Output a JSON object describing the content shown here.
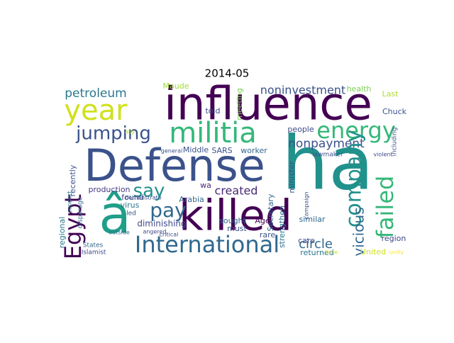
{
  "title": "2014-05",
  "words": [
    "influence",
    "Defense",
    "ha",
    "killed",
    "â",
    "International",
    "militia",
    "year",
    "energy",
    "jumping",
    "petroleum",
    "noninvestment",
    "say",
    "pay",
    "created",
    "nonpayment",
    "Egypt",
    "company",
    "failed",
    "vicious",
    "circle",
    "diminishing",
    "production",
    "virus",
    "led",
    "found",
    "Arabia",
    "Middle",
    "SARS",
    "wa",
    "Maude",
    "told",
    "meeting",
    "Secretary",
    "minister",
    "strengthen",
    "people",
    "worker",
    "sought",
    "must",
    "Age",
    "rare",
    "similar",
    "care",
    "returned",
    "region",
    "United",
    "health",
    "Last",
    "Chuck",
    "lawmaker",
    "States",
    "Islamist",
    "recently",
    "regional",
    "disparage",
    "general",
    "critical",
    "angered",
    "outside",
    "support",
    "demonstrate",
    "ally",
    "including",
    "violent",
    "unity",
    "time",
    "campaign"
  ]
}
